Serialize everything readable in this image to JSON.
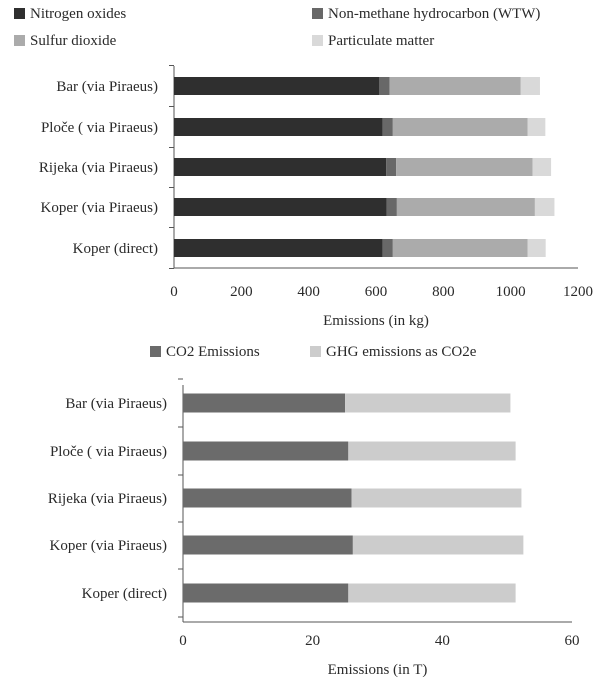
{
  "chart_data": [
    {
      "type": "bar",
      "orientation": "horizontal",
      "stacked": true,
      "categories": [
        "Bar (via Piraeus)",
        "Ploče ( via Piraeus)",
        "Rijeka (via Piraeus)",
        "Koper (via Piraeus)",
        "Koper (direct)"
      ],
      "series": [
        {
          "name": "Nitrogen oxides",
          "color": "#2f2f2f",
          "values": [
            610,
            620,
            630,
            632,
            620
          ]
        },
        {
          "name": "Non-methane hydrocarbon (WTW)",
          "color": "#686868",
          "values": [
            30,
            30,
            30,
            30,
            30
          ]
        },
        {
          "name": "Sulfur dioxide",
          "color": "#ababab",
          "values": [
            390,
            400,
            405,
            410,
            400
          ]
        },
        {
          "name": "Particulate matter",
          "color": "#d9d9d9",
          "values": [
            57,
            53,
            55,
            58,
            54
          ]
        }
      ],
      "xlabel": "Emissions  (in kg)",
      "ylabel": "",
      "xlim": [
        0,
        1200
      ],
      "xticks": [
        "0",
        "200",
        "400",
        "600",
        "800",
        "1000",
        "1200"
      ],
      "legend": "top",
      "grid": false
    },
    {
      "type": "bar",
      "orientation": "horizontal",
      "stacked": true,
      "categories": [
        "Bar (via Piraeus)",
        "Ploče ( via Piraeus)",
        "Rijeka (via Piraeus)",
        "Koper (via Piraeus)",
        "Koper (direct)"
      ],
      "series": [
        {
          "name": "CO2 Emissions",
          "color": "#6b6b6b",
          "values": [
            25.0,
            25.5,
            26.0,
            26.2,
            25.5
          ]
        },
        {
          "name": "GHG emissions as CO2e",
          "color": "#cccccc",
          "values": [
            25.5,
            25.8,
            26.2,
            26.3,
            25.8
          ]
        }
      ],
      "xlabel": "Emissions (in T)",
      "ylabel": "",
      "xlim": [
        0,
        60
      ],
      "xticks": [
        "0",
        "20",
        "40",
        "60"
      ],
      "legend": "top",
      "grid": false
    }
  ]
}
